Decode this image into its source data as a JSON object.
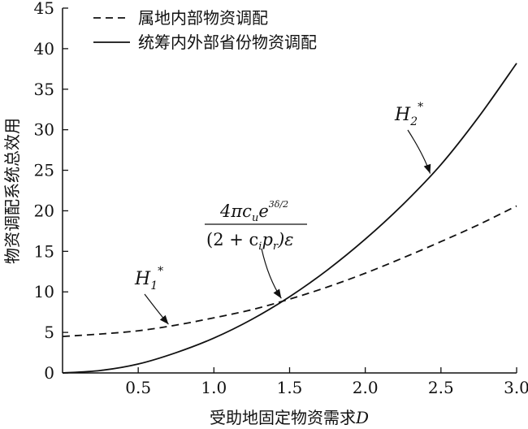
{
  "chart_data": {
    "type": "line",
    "xlabel_prefix": "受助地固定物资需求",
    "xlabel_var": "D",
    "ylabel": "物资调配系统总效用",
    "xlim": [
      0,
      3.0
    ],
    "ylim": [
      0,
      45
    ],
    "xticks": [
      "0.5",
      "1.0",
      "1.5",
      "2.0",
      "2.5",
      "3.0"
    ],
    "yticks": [
      "0",
      "5",
      "10",
      "15",
      "20",
      "25",
      "30",
      "35",
      "40",
      "45"
    ],
    "grid": false,
    "legend_position": "top-left",
    "series": [
      {
        "name": "属地内部物资调配",
        "style": "dashed",
        "x": [
          0,
          0.25,
          0.5,
          0.75,
          1.0,
          1.25,
          1.5,
          1.75,
          2.0,
          2.25,
          2.5,
          2.75,
          3.0
        ],
        "y": [
          4.5,
          4.8,
          5.2,
          5.9,
          6.8,
          7.8,
          9.1,
          10.6,
          12.3,
          14.2,
          16.2,
          18.3,
          20.6
        ]
      },
      {
        "name": "统筹内外部省份物资调配",
        "style": "solid",
        "x": [
          0,
          0.25,
          0.5,
          0.75,
          1.0,
          1.25,
          1.5,
          1.75,
          2.0,
          2.25,
          2.5,
          2.75,
          3.0
        ],
        "y": [
          0,
          0.3,
          1.1,
          2.5,
          4.3,
          6.6,
          9.4,
          12.7,
          16.5,
          20.8,
          25.7,
          31.6,
          38.2
        ]
      }
    ],
    "annotations": [
      {
        "id": "h1",
        "label": "H",
        "sub": "1",
        "sup": "*",
        "arrow_to": [
          0.7,
          5.8
        ]
      },
      {
        "id": "h2",
        "label": "H",
        "sub": "2",
        "sup": "*",
        "arrow_to": [
          2.45,
          25.0
        ]
      },
      {
        "id": "intersection",
        "numerator": "4πc",
        "numerator_sub": "u",
        "numerator_e": "e",
        "numerator_exp": "3δ/2",
        "denominator": "(2 + c",
        "denominator_sub_i": "i",
        "denominator_p": "p",
        "denominator_sub_r": "r",
        "denominator_tail": ")ε",
        "arrow_to": [
          1.44,
          9.0
        ]
      }
    ]
  }
}
